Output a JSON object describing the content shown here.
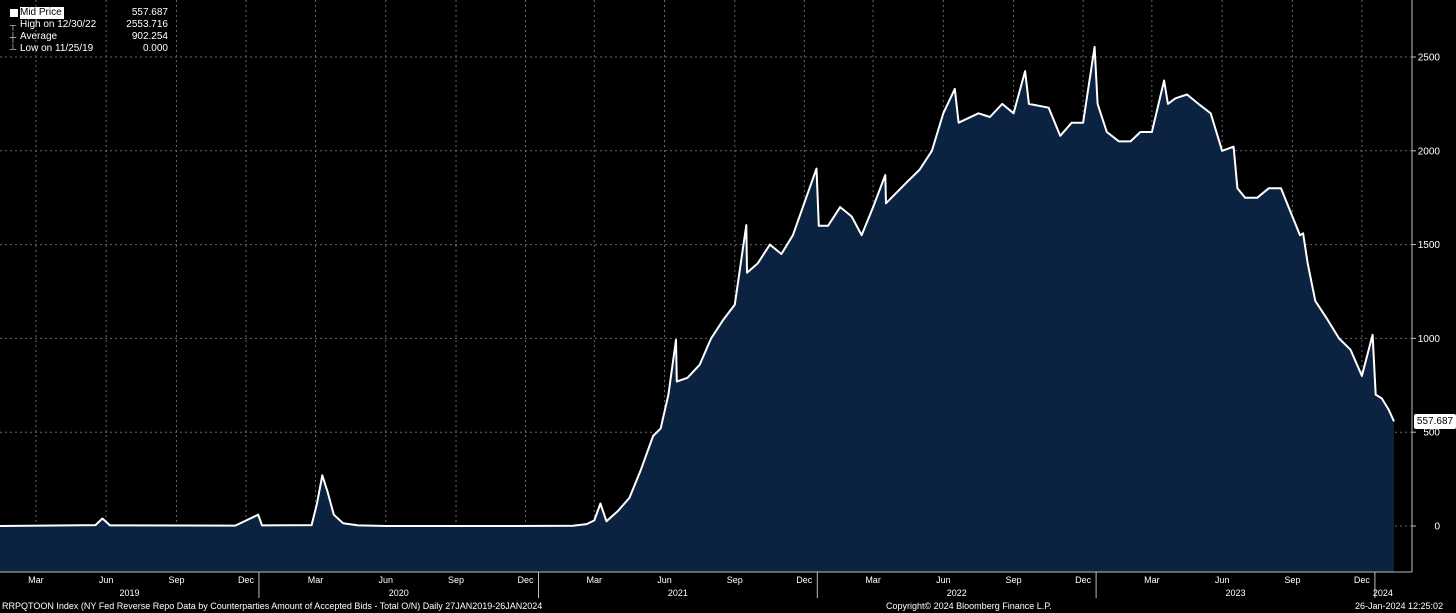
{
  "legend": {
    "mid": {
      "label": "Mid Price",
      "value": "557.687"
    },
    "high": {
      "label": "High on 12/30/22",
      "value": "2553.716"
    },
    "avg": {
      "label": "Average",
      "value": "902.254"
    },
    "low": {
      "label": "Low on 11/25/19",
      "value": "0.000"
    }
  },
  "last_value_tag": "557.687",
  "footer": {
    "left": "RRPQTOON Index (NY Fed Reverse Repo Data by Counterparties Amount of Accepted Bids - Total O/N)  Daily 27JAN2019-26JAN2024",
    "center": "Copyright© 2024 Bloomberg Finance L.P.",
    "right": "26-Jan-2024 12:25:02"
  },
  "colors": {
    "line": "#ffffff",
    "area": "#0b2240",
    "grid": "#6a6a6a",
    "background": "#000000"
  },
  "chart_data": {
    "type": "area",
    "series_name": "Mid Price",
    "ylim": [
      -250,
      2800
    ],
    "yticks": [
      0,
      500,
      1000,
      1500,
      2000,
      2500
    ],
    "month_ticks": [
      "Mar",
      "Jun",
      "Sep",
      "Dec",
      "Mar",
      "Jun",
      "Sep",
      "Dec",
      "Mar",
      "Jun",
      "Sep",
      "Dec",
      "Mar",
      "Jun",
      "Sep",
      "Dec",
      "Mar",
      "Jun",
      "Sep",
      "Dec"
    ],
    "year_labels": [
      "2019",
      "2020",
      "2021",
      "2022",
      "2023",
      "2024"
    ],
    "grid": true,
    "last_value": 557.687,
    "high": {
      "date": "2022-12-30",
      "value": 2553.716
    },
    "low": {
      "date": "2019-11-25",
      "value": 0.0
    },
    "average": 902.254,
    "points": [
      [
        "2019-01-27",
        0
      ],
      [
        "2019-06-01",
        5
      ],
      [
        "2019-06-10",
        40
      ],
      [
        "2019-06-20",
        3
      ],
      [
        "2019-12-01",
        2
      ],
      [
        "2019-12-31",
        60
      ],
      [
        "2020-01-05",
        3
      ],
      [
        "2020-03-10",
        5
      ],
      [
        "2020-03-17",
        120
      ],
      [
        "2020-03-24",
        270
      ],
      [
        "2020-03-31",
        180
      ],
      [
        "2020-04-08",
        60
      ],
      [
        "2020-04-20",
        15
      ],
      [
        "2020-05-10",
        3
      ],
      [
        "2020-06-15",
        0
      ],
      [
        "2020-12-01",
        0
      ],
      [
        "2021-02-15",
        1
      ],
      [
        "2021-03-05",
        10
      ],
      [
        "2021-03-15",
        30
      ],
      [
        "2021-03-23",
        120
      ],
      [
        "2021-03-31",
        25
      ],
      [
        "2021-04-15",
        80
      ],
      [
        "2021-04-30",
        150
      ],
      [
        "2021-05-15",
        300
      ],
      [
        "2021-05-31",
        480
      ],
      [
        "2021-06-10",
        520
      ],
      [
        "2021-06-20",
        700
      ],
      [
        "2021-06-30",
        992
      ],
      [
        "2021-07-01",
        770
      ],
      [
        "2021-07-15",
        790
      ],
      [
        "2021-07-31",
        860
      ],
      [
        "2021-08-15",
        1000
      ],
      [
        "2021-08-31",
        1100
      ],
      [
        "2021-09-15",
        1180
      ],
      [
        "2021-09-30",
        1604
      ],
      [
        "2021-10-01",
        1350
      ],
      [
        "2021-10-15",
        1400
      ],
      [
        "2021-10-31",
        1500
      ],
      [
        "2021-11-15",
        1450
      ],
      [
        "2021-11-30",
        1550
      ],
      [
        "2021-12-31",
        1905
      ],
      [
        "2022-01-03",
        1600
      ],
      [
        "2022-01-15",
        1600
      ],
      [
        "2022-01-31",
        1700
      ],
      [
        "2022-02-15",
        1650
      ],
      [
        "2022-02-28",
        1550
      ],
      [
        "2022-03-15",
        1700
      ],
      [
        "2022-03-31",
        1871
      ],
      [
        "2022-04-01",
        1720
      ],
      [
        "2022-04-30",
        1840
      ],
      [
        "2022-05-15",
        1900
      ],
      [
        "2022-05-31",
        2000
      ],
      [
        "2022-06-15",
        2200
      ],
      [
        "2022-06-30",
        2330
      ],
      [
        "2022-07-05",
        2150
      ],
      [
        "2022-07-31",
        2200
      ],
      [
        "2022-08-15",
        2180
      ],
      [
        "2022-08-31",
        2250
      ],
      [
        "2022-09-15",
        2200
      ],
      [
        "2022-09-30",
        2425
      ],
      [
        "2022-10-05",
        2250
      ],
      [
        "2022-10-31",
        2230
      ],
      [
        "2022-11-15",
        2080
      ],
      [
        "2022-11-30",
        2150
      ],
      [
        "2022-12-15",
        2150
      ],
      [
        "2022-12-30",
        2554
      ],
      [
        "2023-01-03",
        2250
      ],
      [
        "2023-01-15",
        2100
      ],
      [
        "2023-01-31",
        2050
      ],
      [
        "2023-02-15",
        2050
      ],
      [
        "2023-02-28",
        2100
      ],
      [
        "2023-03-15",
        2100
      ],
      [
        "2023-03-31",
        2375
      ],
      [
        "2023-04-05",
        2250
      ],
      [
        "2023-04-15",
        2280
      ],
      [
        "2023-04-30",
        2300
      ],
      [
        "2023-05-15",
        2250
      ],
      [
        "2023-05-31",
        2200
      ],
      [
        "2023-06-15",
        2000
      ],
      [
        "2023-06-30",
        2022
      ],
      [
        "2023-07-05",
        1800
      ],
      [
        "2023-07-15",
        1750
      ],
      [
        "2023-07-31",
        1750
      ],
      [
        "2023-08-15",
        1800
      ],
      [
        "2023-08-31",
        1800
      ],
      [
        "2023-09-15",
        1650
      ],
      [
        "2023-09-25",
        1550
      ],
      [
        "2023-09-29",
        1560
      ],
      [
        "2023-10-05",
        1400
      ],
      [
        "2023-10-15",
        1200
      ],
      [
        "2023-10-31",
        1100
      ],
      [
        "2023-11-15",
        1000
      ],
      [
        "2023-11-30",
        940
      ],
      [
        "2023-12-15",
        800
      ],
      [
        "2023-12-29",
        1019
      ],
      [
        "2024-01-02",
        700
      ],
      [
        "2024-01-10",
        680
      ],
      [
        "2024-01-19",
        620
      ],
      [
        "2024-01-26",
        557.687
      ]
    ]
  }
}
